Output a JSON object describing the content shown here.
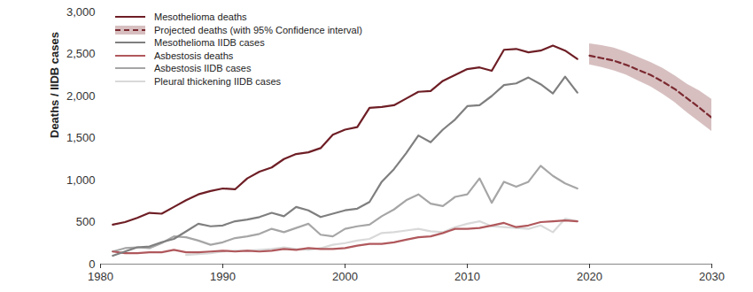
{
  "chart_data": {
    "type": "line",
    "y_label": "Deaths / IIDB cases",
    "legend": "top-left",
    "grid": false,
    "x": [
      1981,
      1982,
      1983,
      1984,
      1985,
      1986,
      1987,
      1988,
      1989,
      1990,
      1991,
      1992,
      1993,
      1994,
      1995,
      1996,
      1997,
      1998,
      1999,
      2000,
      2001,
      2002,
      2003,
      2004,
      2005,
      2006,
      2007,
      2008,
      2009,
      2010,
      2011,
      2012,
      2013,
      2014,
      2015,
      2016,
      2017,
      2018,
      2019,
      2020,
      2021,
      2022,
      2023,
      2024,
      2025,
      2026,
      2027,
      2028,
      2029,
      2030
    ],
    "xlim": [
      1980,
      2030
    ],
    "xticks": [
      1980,
      1990,
      2000,
      2010,
      2020,
      2030
    ],
    "ylim": [
      0,
      3000
    ],
    "yticks": [
      0,
      500,
      {
        "value": 1000,
        "label": "1,000"
      },
      {
        "value": 1500,
        "label": "1,500"
      },
      {
        "value": 2000,
        "label": "2,000"
      },
      {
        "value": 2500,
        "label": "2,500"
      },
      {
        "value": 3000,
        "label": "3,000"
      }
    ],
    "series": [
      {
        "name": "Mesothelioma deaths",
        "color": "#6e1e25",
        "line_style": "solid",
        "values": [
          470,
          500,
          550,
          610,
          600,
          680,
          760,
          830,
          870,
          900,
          890,
          1020,
          1100,
          1150,
          1250,
          1310,
          1330,
          1380,
          1540,
          1600,
          1630,
          1860,
          1870,
          1890,
          1970,
          2050,
          2060,
          2180,
          2250,
          2320,
          2340,
          2300,
          2550,
          2560,
          2520,
          2540,
          2600,
          2540,
          2440,
          null,
          null,
          null,
          null,
          null,
          null,
          null,
          null,
          null,
          null,
          null
        ]
      },
      {
        "name": "Projected deaths (with 95% Confidence interval)",
        "color": "#7b2a30",
        "line_style": "dashed",
        "values": [
          null,
          null,
          null,
          null,
          null,
          null,
          null,
          null,
          null,
          null,
          null,
          null,
          null,
          null,
          null,
          null,
          null,
          null,
          null,
          null,
          null,
          null,
          null,
          null,
          null,
          null,
          null,
          null,
          null,
          null,
          null,
          null,
          null,
          null,
          null,
          null,
          null,
          null,
          null,
          2480,
          2450,
          2420,
          2370,
          2310,
          2250,
          2170,
          2080,
          1970,
          1860,
          1740
        ],
        "lower": [
          null,
          null,
          null,
          null,
          null,
          null,
          null,
          null,
          null,
          null,
          null,
          null,
          null,
          null,
          null,
          null,
          null,
          null,
          null,
          null,
          null,
          null,
          null,
          null,
          null,
          null,
          null,
          null,
          null,
          null,
          null,
          null,
          null,
          null,
          null,
          null,
          null,
          null,
          null,
          2370,
          2340,
          2300,
          2250,
          2180,
          2110,
          2020,
          1920,
          1800,
          1690,
          1580
        ],
        "upper": [
          null,
          null,
          null,
          null,
          null,
          null,
          null,
          null,
          null,
          null,
          null,
          null,
          null,
          null,
          null,
          null,
          null,
          null,
          null,
          null,
          null,
          null,
          null,
          null,
          null,
          null,
          null,
          null,
          null,
          null,
          null,
          null,
          null,
          null,
          null,
          null,
          null,
          null,
          null,
          2620,
          2600,
          2570,
          2520,
          2460,
          2400,
          2330,
          2240,
          2140,
          2060,
          1960
        ]
      },
      {
        "name": "Mesothelioma IIDB cases",
        "color": "#7f7f7f",
        "line_style": "solid",
        "values": [
          100,
          150,
          200,
          210,
          260,
          300,
          390,
          480,
          450,
          460,
          510,
          530,
          560,
          610,
          570,
          680,
          640,
          560,
          600,
          640,
          660,
          740,
          980,
          1130,
          1320,
          1530,
          1450,
          1600,
          1720,
          1880,
          1890,
          2000,
          2130,
          2150,
          2220,
          2140,
          2030,
          2230,
          2040,
          null,
          null,
          null,
          null,
          null,
          null,
          null,
          null,
          null,
          null,
          null
        ]
      },
      {
        "name": "Asbestosis deaths",
        "color": "#b0585c",
        "line_style": "solid",
        "values": [
          150,
          130,
          130,
          140,
          140,
          170,
          140,
          140,
          150,
          160,
          150,
          160,
          150,
          160,
          180,
          170,
          190,
          180,
          180,
          190,
          220,
          240,
          240,
          260,
          290,
          320,
          330,
          370,
          420,
          420,
          430,
          460,
          490,
          440,
          460,
          500,
          510,
          520,
          510,
          null,
          null,
          null,
          null,
          null,
          null,
          null,
          null,
          null,
          null,
          null
        ]
      },
      {
        "name": "Asbestosis IIDB cases",
        "color": "#a6a6a6",
        "line_style": "solid",
        "values": [
          150,
          190,
          200,
          190,
          250,
          330,
          320,
          280,
          230,
          260,
          310,
          330,
          360,
          420,
          380,
          430,
          480,
          350,
          330,
          420,
          450,
          470,
          570,
          650,
          760,
          830,
          720,
          690,
          800,
          830,
          1020,
          730,
          980,
          920,
          980,
          1170,
          1050,
          960,
          900,
          null,
          null,
          null,
          null,
          null,
          null,
          null,
          null,
          null,
          null,
          null
        ]
      },
      {
        "name": "Pleural thickening IIDB cases",
        "color": "#d9d9d9",
        "line_style": "solid",
        "values": [
          null,
          null,
          null,
          null,
          null,
          null,
          110,
          120,
          130,
          150,
          160,
          160,
          170,
          180,
          200,
          180,
          170,
          190,
          230,
          250,
          280,
          300,
          370,
          380,
          400,
          420,
          390,
          380,
          440,
          480,
          510,
          450,
          440,
          430,
          420,
          460,
          380,
          540,
          510,
          null,
          null,
          null,
          null,
          null,
          null,
          null,
          null,
          null,
          null,
          null
        ]
      }
    ]
  }
}
